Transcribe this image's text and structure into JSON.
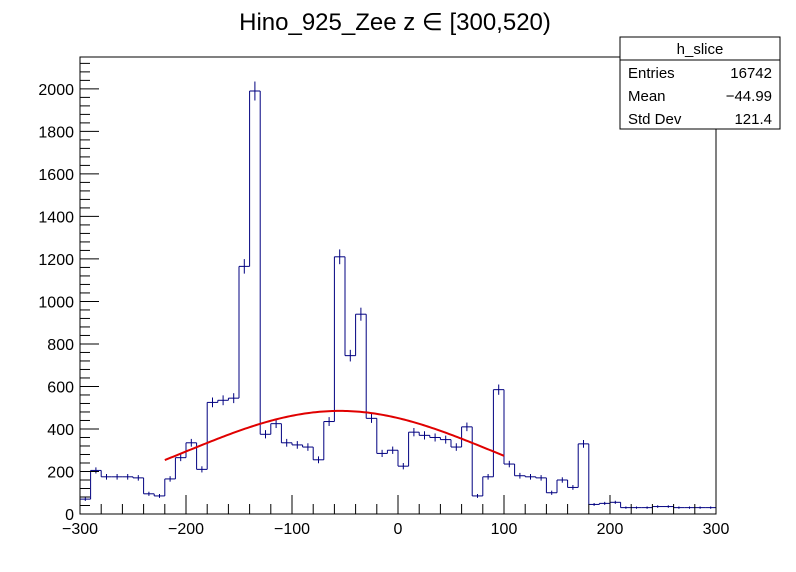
{
  "chart_data": {
    "type": "bar",
    "title": "Hino_925_Zee z  ∈ [300,520)",
    "xlabel": "",
    "ylabel": "",
    "xlim": [
      -300,
      300
    ],
    "ylim": [
      0,
      2150
    ],
    "grid": false,
    "bin_width": 10,
    "bin_low_edges": [
      -300,
      -290,
      -280,
      -270,
      -260,
      -250,
      -240,
      -230,
      -220,
      -210,
      -200,
      -190,
      -180,
      -170,
      -160,
      -150,
      -140,
      -130,
      -120,
      -110,
      -100,
      -90,
      -80,
      -70,
      -60,
      -50,
      -40,
      -30,
      -20,
      -10,
      0,
      10,
      20,
      30,
      40,
      50,
      60,
      70,
      80,
      90,
      100,
      110,
      120,
      130,
      140,
      150,
      160,
      170,
      180,
      190,
      200,
      210,
      220,
      230,
      240,
      250,
      260,
      270,
      280,
      290
    ],
    "values": [
      70,
      205,
      175,
      175,
      175,
      170,
      95,
      85,
      165,
      265,
      335,
      210,
      525,
      535,
      545,
      1165,
      1990,
      375,
      425,
      335,
      325,
      315,
      255,
      435,
      1210,
      745,
      940,
      450,
      285,
      300,
      225,
      385,
      370,
      360,
      350,
      315,
      410,
      85,
      175,
      585,
      235,
      180,
      175,
      170,
      100,
      160,
      125,
      330,
      45,
      50,
      55,
      30,
      30,
      30,
      35,
      35,
      30,
      30,
      30,
      30
    ],
    "error_bars": true,
    "x_ticks": [
      -300,
      -200,
      -100,
      0,
      100,
      200,
      300
    ],
    "x_tick_labels": [
      "−300",
      "−200",
      "−100",
      "0",
      "100",
      "200",
      "300"
    ],
    "y_ticks": [
      0,
      200,
      400,
      600,
      800,
      1000,
      1200,
      1400,
      1600,
      1800,
      2000
    ],
    "y_tick_labels": [
      "0",
      "200",
      "400",
      "600",
      "800",
      "1000",
      "1200",
      "1400",
      "1600",
      "1800",
      "2000"
    ],
    "fit": {
      "type": "gaussian",
      "color": "#e00000",
      "x_range": [
        -220,
        100
      ],
      "amplitude": 485,
      "mean": -55,
      "sigma": 145
    },
    "histogram_color": "#000080",
    "stats_box": {
      "position": "top-right",
      "name": "h_slice",
      "rows": [
        {
          "label": "Entries",
          "value": "16742"
        },
        {
          "label": "Mean",
          "value": "−44.99"
        },
        {
          "label": "Std Dev",
          "value": "121.4"
        }
      ]
    }
  }
}
